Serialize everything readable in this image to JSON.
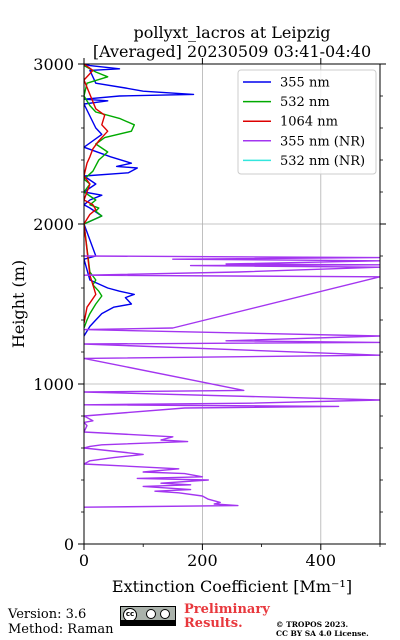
{
  "chart_data": {
    "type": "line",
    "title": "pollyxt_lacros at Leipzig",
    "subtitle": "[Averaged] 20230509 03:41-04:40",
    "xlabel": "Extinction Coefficient [Mm⁻¹]",
    "ylabel": "Height (m)",
    "xlim": [
      0,
      500
    ],
    "ylim": [
      0,
      3000
    ],
    "xticks": [
      "0",
      "200",
      "400"
    ],
    "yticks": [
      "0",
      "1000",
      "2000",
      "3000"
    ],
    "grid": true,
    "legend_position": "top-right",
    "series": [
      {
        "name": "355 nm",
        "color": "#0000ee",
        "x": [
          0,
          10,
          60,
          10,
          20,
          70,
          100,
          185,
          60,
          0,
          40,
          0,
          20,
          30,
          0,
          45,
          80,
          55,
          90,
          75,
          0,
          20,
          0,
          30,
          10,
          0,
          10,
          30,
          0,
          20,
          0,
          10,
          40,
          60,
          85,
          70,
          80,
          50,
          30,
          20,
          10,
          0
        ],
        "y": [
          3000,
          2990,
          2970,
          2960,
          2880,
          2850,
          2830,
          2810,
          2800,
          2780,
          2770,
          2750,
          2600,
          2560,
          2480,
          2420,
          2380,
          2360,
          2350,
          2320,
          2300,
          2250,
          2200,
          2180,
          2150,
          2120,
          2100,
          2050,
          2000,
          1800,
          1780,
          1650,
          1600,
          1580,
          1560,
          1540,
          1500,
          1480,
          1440,
          1400,
          1360,
          1300
        ]
      },
      {
        "name": "532 nm",
        "color": "#00aa00",
        "x": [
          0,
          20,
          40,
          5,
          0,
          10,
          20,
          60,
          85,
          80,
          35,
          20,
          40,
          25,
          15,
          0,
          10,
          0,
          20,
          10,
          25,
          20,
          30,
          0,
          10,
          20,
          15,
          25,
          30,
          20,
          10,
          5,
          0
        ],
        "y": [
          2990,
          2950,
          2920,
          2880,
          2800,
          2740,
          2700,
          2660,
          2620,
          2580,
          2540,
          2500,
          2450,
          2400,
          2330,
          2280,
          2250,
          2200,
          2150,
          2120,
          2100,
          2080,
          2050,
          2000,
          1700,
          1650,
          1620,
          1580,
          1550,
          1500,
          1440,
          1400,
          1350
        ]
      },
      {
        "name": "1064 nm",
        "color": "#dd0000",
        "x": [
          0,
          15,
          0,
          20,
          35,
          30,
          40,
          25,
          15,
          10,
          5,
          0,
          10,
          5,
          0,
          15,
          20,
          10,
          0,
          10,
          15,
          20,
          5,
          0
        ],
        "y": [
          3000,
          2960,
          2900,
          2720,
          2680,
          2620,
          2580,
          2520,
          2470,
          2420,
          2380,
          2300,
          2250,
          2200,
          2150,
          2120,
          2090,
          2060,
          2000,
          1680,
          1620,
          1560,
          1480,
          1380
        ]
      },
      {
        "name": "355 nm (NR)",
        "color": "#a335f0",
        "x": [
          0,
          500,
          150,
          500,
          240,
          500,
          180,
          500,
          260,
          0,
          500,
          150,
          0,
          500,
          240,
          500,
          0,
          500,
          0,
          270,
          0,
          500,
          280,
          0,
          430,
          170,
          0,
          15,
          0,
          5,
          0,
          150,
          130,
          175,
          30,
          10,
          0,
          100,
          50,
          10,
          0,
          160,
          100,
          170,
          200,
          90,
          210,
          130,
          180,
          100,
          180,
          120,
          160,
          200,
          210,
          230,
          220,
          260,
          0
        ],
        "y": [
          1800,
          1790,
          1780,
          1770,
          1750,
          1745,
          1740,
          1730,
          1700,
          1680,
          1670,
          1350,
          1340,
          1300,
          1270,
          1260,
          1250,
          1180,
          1160,
          960,
          950,
          900,
          880,
          870,
          860,
          850,
          800,
          770,
          760,
          740,
          700,
          670,
          650,
          640,
          620,
          610,
          600,
          560,
          540,
          520,
          500,
          470,
          450,
          440,
          420,
          410,
          400,
          380,
          370,
          360,
          340,
          330,
          320,
          300,
          280,
          260,
          250,
          240,
          230
        ]
      },
      {
        "name": "532 nm (NR)",
        "color": "#33e6dd",
        "x": [],
        "y": []
      }
    ]
  },
  "footer": {
    "version": "Version: 3.6",
    "method": "Method: Raman",
    "preliminary_1": "Preliminary",
    "preliminary_2": "Results.",
    "copyright_1": "© TROPOS 2023.",
    "copyright_2": "CC BY SA 4.0 License.",
    "license_badge": "cc BY SA"
  }
}
